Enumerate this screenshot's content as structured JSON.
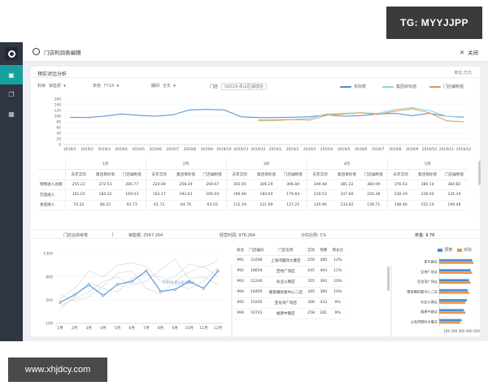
{
  "watermarks": {
    "tg": "TG: MYYJJPP",
    "url": "www.xhjdcy.com"
  },
  "colors": {
    "sidebar": "#2f3542",
    "active": "#16a0a0",
    "actual": "#4a8fd6",
    "target": "#7edcd6",
    "store": "#e8954a"
  },
  "sidebar": {
    "items": [
      {
        "icon": "clipboard-icon",
        "active": true
      },
      {
        "icon": "layers-icon",
        "active": false
      },
      {
        "icon": "grid-icon",
        "active": false
      }
    ]
  },
  "header": {
    "title": "门店利润表编辑",
    "close_label": "关闭"
  },
  "top_panel": {
    "title": "预实对比分析",
    "unit": "单位:万元",
    "filters": {
      "subject_label": "科目",
      "subject_value": "销售额",
      "year_label": "年份",
      "year_value": "FY18",
      "period_label": "期间",
      "period_value": "全年",
      "store_label": "门店",
      "store_value": "50019-青山区湖滨店"
    },
    "legend": [
      "实际数",
      "集团目标值",
      "门店编制值"
    ]
  },
  "chart_data": [
    {
      "type": "line",
      "title": "",
      "x": [
        "2019/1",
        "2019/2",
        "2019/3",
        "2019/4",
        "2019/5",
        "2019/6",
        "2019/7",
        "2019/8",
        "2019/9",
        "2019/10",
        "2019/11",
        "2019/12",
        "2019/1",
        "2019/2",
        "2019/3",
        "2019/4",
        "2019/5",
        "2019/6",
        "2019/7",
        "2019/8",
        "2019/9",
        "2019/10",
        "2019/11",
        "2019/12"
      ],
      "ylim": [
        0,
        160
      ],
      "yticks": [
        0,
        20,
        40,
        60,
        80,
        100,
        120,
        140,
        160
      ],
      "grid": true,
      "legend_position": "top-right",
      "series": [
        {
          "name": "实际数",
          "values": [
            96,
            95,
            100,
            108,
            103,
            100,
            105,
            122,
            124,
            122,
            98,
            95,
            95,
            96,
            98,
            105,
            100,
            102,
            108,
            110,
            102,
            110,
            100,
            97
          ]
        },
        {
          "name": "集团目标值",
          "values": [
            null,
            null,
            null,
            null,
            null,
            null,
            null,
            null,
            null,
            null,
            null,
            88,
            88,
            88,
            92,
            108,
            110,
            112,
            110,
            124,
            130,
            120,
            100,
            95
          ]
        },
        {
          "name": "门店编制值",
          "values": [
            null,
            null,
            null,
            null,
            null,
            null,
            null,
            null,
            null,
            null,
            null,
            85,
            85,
            88,
            86,
            104,
            108,
            112,
            106,
            118,
            126,
            112,
            84,
            80
          ]
        }
      ]
    },
    {
      "type": "line",
      "title": "",
      "x": [
        "1月",
        "2月",
        "3月",
        "4月",
        "5月",
        "6月",
        "7月",
        "8月",
        "9月",
        "10月",
        "11月",
        "12月"
      ],
      "ylim": [
        100,
        1300
      ],
      "yticks": [
        100,
        500,
        900,
        1300
      ],
      "grid": true,
      "series": [
        {
          "name": "50019-青山区湖滨店",
          "values": [
            460,
            590,
            760,
            580,
            770,
            820,
            1000,
            650,
            680,
            820,
            700,
            1000
          ]
        },
        {
          "name": "",
          "values": [
            520,
            700,
            1000,
            900,
            1100,
            1140,
            1080,
            820,
            900,
            1120,
            1060,
            1180
          ]
        },
        {
          "name": "",
          "values": [
            400,
            520,
            640,
            820,
            900,
            760,
            820,
            1020,
            1200,
            860,
            900,
            760
          ]
        },
        {
          "name": "",
          "values": [
            600,
            480,
            560,
            740,
            960,
            1000,
            700,
            600,
            820,
            980,
            1080,
            900
          ]
        },
        {
          "name": "",
          "values": [
            340,
            560,
            800,
            700,
            640,
            880,
            940,
            900,
            760,
            700,
            820,
            1060
          ]
        }
      ]
    },
    {
      "type": "bar",
      "orientation": "horizontal",
      "categories": [
        "青羊路店",
        "宝地广场店",
        "亚龙湾广场店",
        "隆家嘴财富中心二店",
        "永业公寓店",
        "福建中路店",
        "上海湾国际大厦店"
      ],
      "xlim": [
        0,
        500
      ],
      "xticks": [
        100,
        200,
        300,
        400,
        500
      ],
      "legend_position": "top-right",
      "series": [
        {
          "name": "预算",
          "values": [
            440,
            420,
            400,
            380,
            370,
            330,
            300
          ]
        },
        {
          "name": "实际",
          "values": [
            460,
            440,
            420,
            400,
            350,
            350,
            280
          ]
        }
      ]
    }
  ],
  "comparison_table": {
    "months": [
      "1月",
      "2月",
      "3月",
      "4月",
      "5月"
    ],
    "metrics": [
      "去年实际",
      "集团目标值",
      "门店编制值"
    ],
    "rows": [
      {
        "label": "销售收入总额",
        "values": [
          "255.22",
          "272.53",
          "280.77",
          "224.89",
          "258.39",
          "269.07",
          "302.65",
          "306.29",
          "306.84",
          "349.48",
          "381.22",
          "360.09",
          "376.63",
          "380.14",
          "384.82"
        ]
      },
      {
        "label": "饮品收入",
        "values": [
          "161.01",
          "184.32",
          "169.03",
          "163.17",
          "193.63",
          "206.04",
          "190.46",
          "184.60",
          "179.64",
          "219.53",
          "247.60",
          "228.38",
          "230.19",
          "228.00",
          "235.34"
        ]
      },
      {
        "label": "食品收入",
        "values": [
          "74.22",
          "88.22",
          "91.73",
          "61.72",
          "64.76",
          "63.03",
          "112.19",
          "121.69",
          "127.21",
          "129.96",
          "133.62",
          "139.71",
          "146.46",
          "152.14",
          "149.48"
        ]
      }
    ]
  },
  "summary": {
    "label": "门店业绩考核",
    "sales": "销售额: 2547.264",
    "profit": "经营利润: 976.264",
    "ratio": "分红比例: 1%",
    "bonus": "奖金: 9.76"
  },
  "store_table": {
    "headers": [
      "排名",
      "门店编码",
      "门店名称",
      "实际",
      "预算",
      "增长比"
    ],
    "rows": [
      [
        "991",
        "21668",
        "上海湾国际大厦店",
        "250",
        "280",
        "12%"
      ],
      [
        "992",
        "18654",
        "宝地广场店",
        "445",
        "493",
        "11%"
      ],
      [
        "993",
        "21246",
        "永业公寓店",
        "355",
        "392",
        "10%"
      ],
      [
        "994",
        "16465",
        "隆家嘴财富中心二店",
        "345",
        "380",
        "10%"
      ],
      [
        "995",
        "15205",
        "亚龙湾广场店",
        "306",
        "433",
        "9%"
      ],
      [
        "996",
        "16741",
        "福建中路店",
        "258",
        "281",
        "9%"
      ]
    ]
  }
}
